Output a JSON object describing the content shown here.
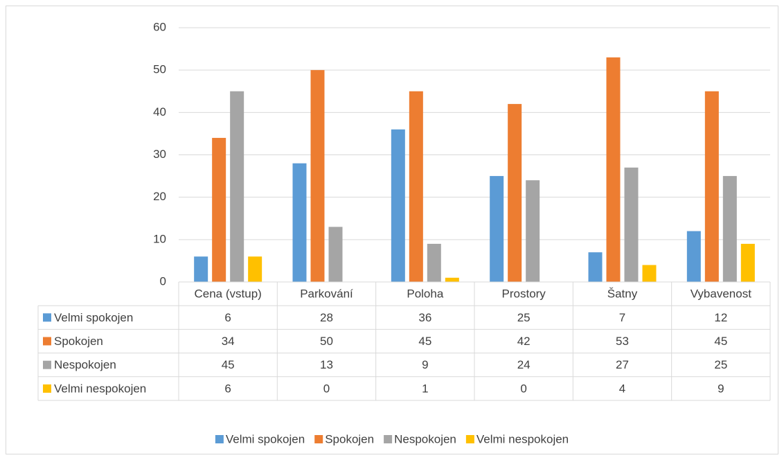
{
  "chart_data": {
    "type": "bar",
    "categories": [
      "Cena (vstup)",
      "Parkování",
      "Poloha",
      "Prostory",
      "Šatny",
      "Vybavenost"
    ],
    "series": [
      {
        "name": "Velmi spokojen",
        "color": "#5b9bd5",
        "values": [
          6,
          28,
          36,
          25,
          7,
          12
        ]
      },
      {
        "name": "Spokojen",
        "color": "#ed7d31",
        "values": [
          34,
          50,
          45,
          42,
          53,
          45
        ]
      },
      {
        "name": "Nespokojen",
        "color": "#a5a5a5",
        "values": [
          45,
          13,
          9,
          24,
          27,
          25
        ]
      },
      {
        "name": "Velmi nespokojen",
        "color": "#ffc000",
        "values": [
          6,
          0,
          1,
          0,
          4,
          9
        ]
      }
    ],
    "ylim": [
      0,
      60
    ],
    "yticks": [
      0,
      10,
      20,
      30,
      40,
      50,
      60
    ],
    "grid": true,
    "legend": "bottom",
    "data_table": true
  }
}
